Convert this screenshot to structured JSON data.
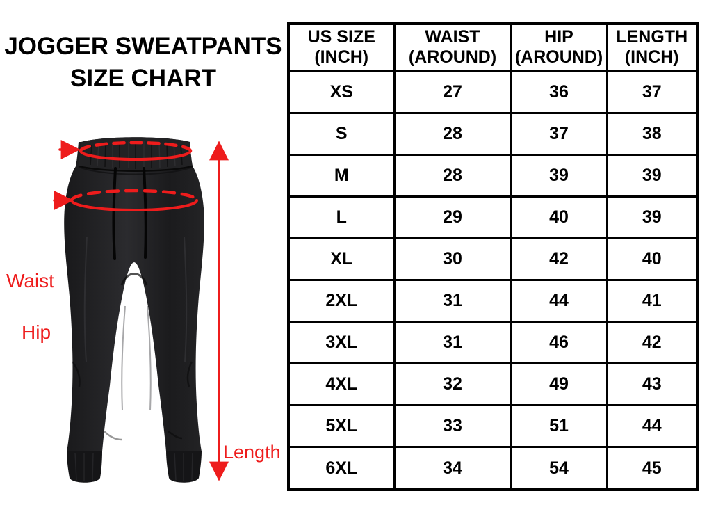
{
  "title": {
    "line1": "JOGGER SWEATPANTS",
    "line2": "SIZE CHART"
  },
  "diagram": {
    "labels": {
      "waist": "Waist",
      "hip": "Hip",
      "length": "Length"
    },
    "annotation_color": "#ee1c1c",
    "pants_color": "#1e1e20"
  },
  "table": {
    "headers": [
      {
        "line1": "US SIZE",
        "line2": "(INCH)"
      },
      {
        "line1": "WAIST",
        "line2": "(AROUND)"
      },
      {
        "line1": "HIP",
        "line2": "(AROUND)"
      },
      {
        "line1": "LENGTH",
        "line2": "(INCH)"
      }
    ],
    "rows": [
      {
        "size": "XS",
        "waist": "27",
        "hip": "36",
        "length": "37"
      },
      {
        "size": "S",
        "waist": "28",
        "hip": "37",
        "length": "38"
      },
      {
        "size": "M",
        "waist": "28",
        "hip": "39",
        "length": "39"
      },
      {
        "size": "L",
        "waist": "29",
        "hip": "40",
        "length": "39"
      },
      {
        "size": "XL",
        "waist": "30",
        "hip": "42",
        "length": "40"
      },
      {
        "size": "2XL",
        "waist": "31",
        "hip": "44",
        "length": "41"
      },
      {
        "size": "3XL",
        "waist": "31",
        "hip": "46",
        "length": "42"
      },
      {
        "size": "4XL",
        "waist": "32",
        "hip": "49",
        "length": "43"
      },
      {
        "size": "5XL",
        "waist": "33",
        "hip": "51",
        "length": "44"
      },
      {
        "size": "6XL",
        "waist": "34",
        "hip": "54",
        "length": "45"
      }
    ]
  },
  "chart_data": {
    "type": "table",
    "title": "JOGGER SWEATPANTS SIZE CHART",
    "columns": [
      "US SIZE (INCH)",
      "WAIST (AROUND)",
      "HIP (AROUND)",
      "LENGTH (INCH)"
    ],
    "categories": [
      "XS",
      "S",
      "M",
      "L",
      "XL",
      "2XL",
      "3XL",
      "4XL",
      "5XL",
      "6XL"
    ],
    "series": [
      {
        "name": "WAIST (AROUND)",
        "values": [
          27,
          28,
          28,
          29,
          30,
          31,
          31,
          32,
          33,
          34
        ]
      },
      {
        "name": "HIP (AROUND)",
        "values": [
          36,
          37,
          39,
          40,
          42,
          44,
          46,
          49,
          51,
          54
        ]
      },
      {
        "name": "LENGTH (INCH)",
        "values": [
          37,
          38,
          39,
          39,
          40,
          41,
          42,
          43,
          44,
          45
        ]
      }
    ],
    "annotations": [
      "Waist",
      "Hip",
      "Length"
    ]
  }
}
